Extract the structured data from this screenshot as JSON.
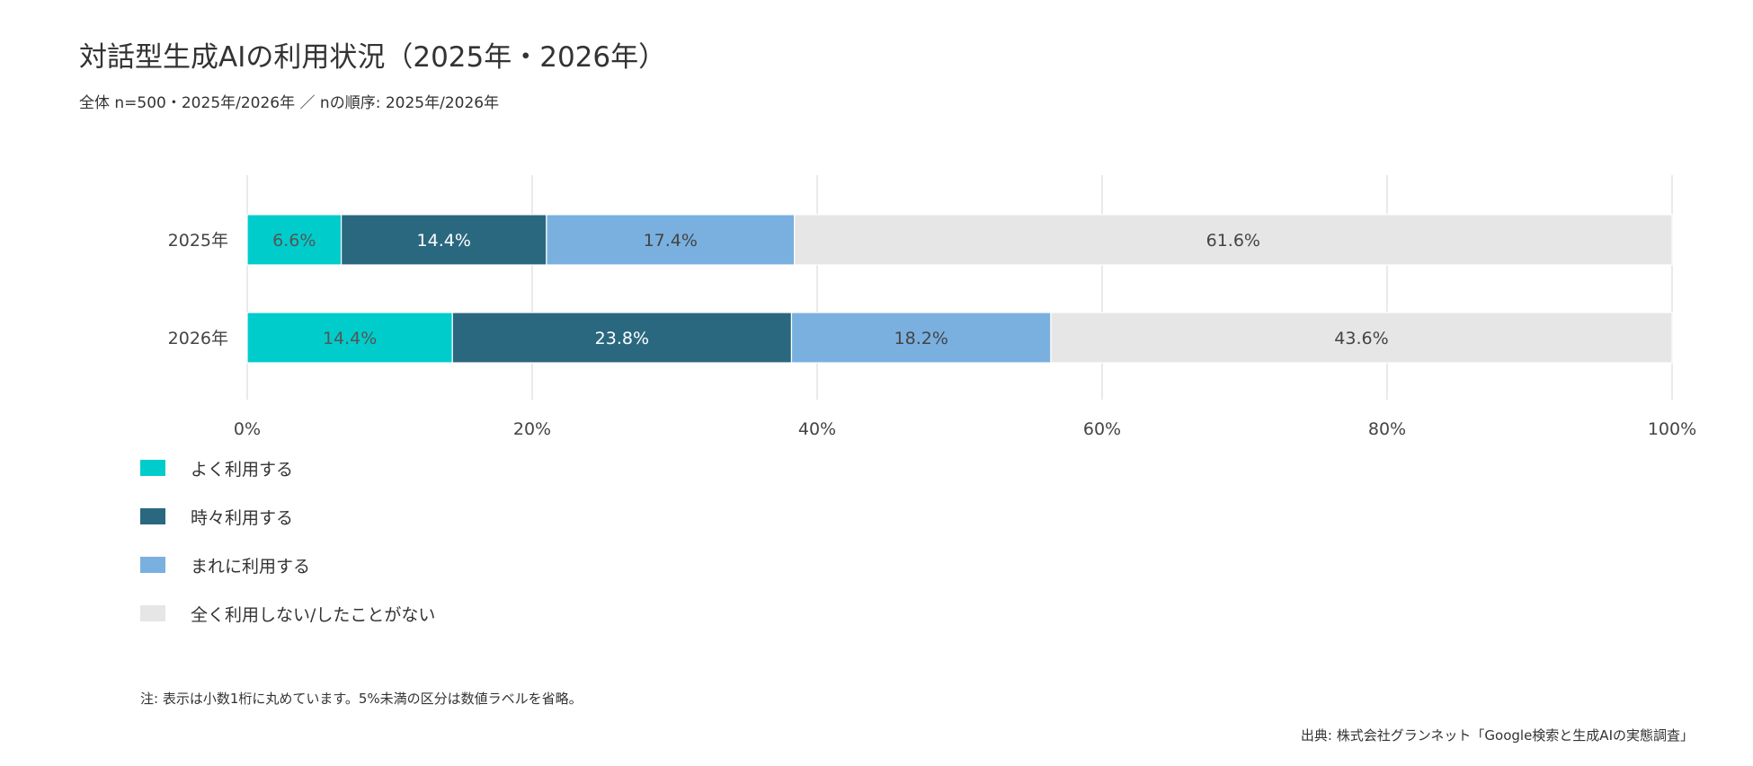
{
  "chart_data": {
    "type": "bar",
    "orientation": "horizontal",
    "stacked": true,
    "title": "対話型生成AIの利用状況（2025年・2026年）",
    "subtitle": "全体 n=500・2025年/2026年 ／ nの順序: 2025年/2026年",
    "categories": [
      "2025年",
      "2026年"
    ],
    "series": [
      {
        "name": "よく利用する",
        "color": "#00CCCC",
        "values": [
          6.6,
          14.4
        ],
        "labels": [
          "6.6%",
          "14.4%"
        ],
        "label_color": "#555555"
      },
      {
        "name": "時々利用する",
        "color": "#2A6880",
        "values": [
          14.4,
          23.8
        ],
        "labels": [
          "14.4%",
          "23.8%"
        ],
        "label_color": "#ffffff"
      },
      {
        "name": "まれに利用する",
        "color": "#7AB0E0",
        "values": [
          17.4,
          18.2
        ],
        "labels": [
          "17.4%",
          "18.2%"
        ],
        "label_color": "#444444"
      },
      {
        "name": "全く利用しない/したことがない",
        "color": "#E6E6E6",
        "values": [
          61.6,
          43.6
        ],
        "labels": [
          "61.6%",
          "43.6%"
        ],
        "label_color": "#444444"
      }
    ],
    "xlim": [
      0,
      100
    ],
    "x_ticks": [
      0,
      20,
      40,
      60,
      80,
      100
    ],
    "x_tick_labels": [
      "0%",
      "20%",
      "40%",
      "60%",
      "80%",
      "100%"
    ],
    "grid": true,
    "legend_position": "bottom-left"
  },
  "note": "注: 表示は小数1桁に丸めています。5%未満の区分は数値ラベルを省略。",
  "source": "出典: 株式会社グランネット「Google検索と生成AIの実態調査」"
}
